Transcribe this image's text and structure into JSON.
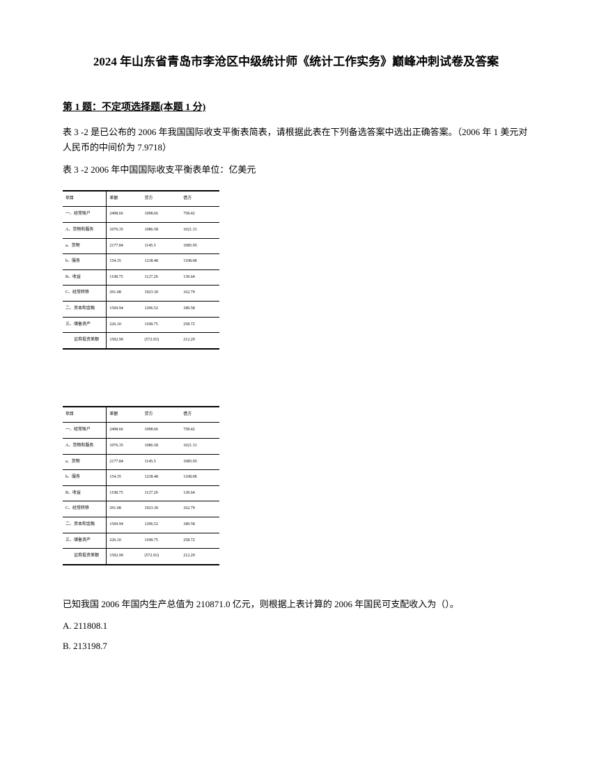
{
  "title": "2024 年山东省青岛市李沧区中级统计师《统计工作实务》巅峰冲刺试卷及答案",
  "question": {
    "header": "第 1 题：不定项选择题(本题 1 分)",
    "para1": "表 3 -2 是已公布的 2006 年我国国际收支平衡表简表，请根据此表在下列备选答案中选出正确答案。（2006 年 1 美元对人民币的中间价为 7.9718）",
    "para2": "表 3 -2 2006 年中国国际收支平衡表单位：亿美元"
  },
  "table": {
    "header": [
      "项目",
      "差额",
      "贷方",
      "借方"
    ],
    "rows": [
      [
        "一、经常账户",
        "2498.66",
        "1098.66",
        "758.42"
      ],
      [
        "A、货物和服务",
        "1076.35",
        "1086.58",
        "1021.31"
      ],
      [
        "a、货物",
        "2177.84",
        "1145.5",
        "1085.95"
      ],
      [
        "b、服务",
        "154.35",
        "1238.48",
        "1108.08"
      ],
      [
        "B、收益",
        "1198.75",
        "1127.20",
        "130.64"
      ],
      [
        "C、经常转移",
        "291.08",
        "1923.30",
        "162.79"
      ],
      [
        "二、资本和金融",
        "1569.94",
        "1296.52",
        "180.58"
      ],
      [
        "三、储备资产",
        "226.10",
        "1108.75",
        "258.72"
      ],
      [
        "　　证券投资差额",
        "1502.99",
        "(572.93)",
        "212.29"
      ]
    ]
  },
  "bottom": {
    "question_text": "已知我国 2006 年国内生产总值为 210871.0 亿元，则根据上表计算的 2006 年国民可支配收入为（）。",
    "option_a": "A. 211808.1",
    "option_b": "B. 213198.7"
  }
}
